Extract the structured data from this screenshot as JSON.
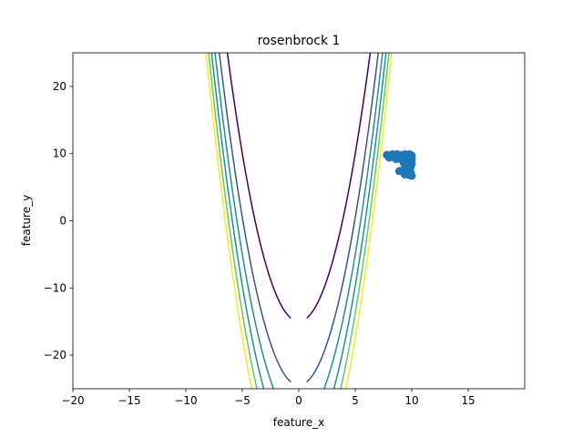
{
  "chart_data": {
    "type": "scatter",
    "title": "rosenbrock 1",
    "xlabel": "feature_x",
    "ylabel": "feature_y",
    "xlim": [
      -20,
      20
    ],
    "ylim": [
      -25,
      25
    ],
    "xticks": [
      -20,
      -15,
      -10,
      -5,
      0,
      5,
      10,
      15
    ],
    "yticks": [
      -20,
      -10,
      0,
      10,
      20
    ],
    "xtick_labels": [
      "−20",
      "−15",
      "−10",
      "−5",
      "0",
      "5",
      "10",
      "15"
    ],
    "ytick_labels": [
      "−20",
      "−10",
      "0",
      "10",
      "20"
    ],
    "grid": false,
    "contour_levels": [
      22500,
      60000,
      90000,
      120000,
      150000,
      180000
    ],
    "contour_colors": [
      "#440154",
      "#3b528b",
      "#21918c",
      "#21918c",
      "#5ec962",
      "#fde725"
    ],
    "marker_color": "#1f77b4",
    "points": [
      {
        "x": 7.8,
        "y": 9.8
      },
      {
        "x": 8.0,
        "y": 9.4
      },
      {
        "x": 8.3,
        "y": 9.9
      },
      {
        "x": 8.5,
        "y": 9.5
      },
      {
        "x": 8.7,
        "y": 9.9
      },
      {
        "x": 8.9,
        "y": 9.3
      },
      {
        "x": 9.0,
        "y": 9.8
      },
      {
        "x": 9.2,
        "y": 9.6
      },
      {
        "x": 9.4,
        "y": 9.9
      },
      {
        "x": 9.6,
        "y": 9.5
      },
      {
        "x": 9.8,
        "y": 9.9
      },
      {
        "x": 10.0,
        "y": 9.7
      },
      {
        "x": 9.1,
        "y": 9.1
      },
      {
        "x": 9.5,
        "y": 9.0
      },
      {
        "x": 9.9,
        "y": 9.2
      },
      {
        "x": 9.3,
        "y": 8.6
      },
      {
        "x": 9.7,
        "y": 8.8
      },
      {
        "x": 10.0,
        "y": 8.5
      },
      {
        "x": 9.6,
        "y": 8.2
      },
      {
        "x": 9.9,
        "y": 8.0
      },
      {
        "x": 9.5,
        "y": 7.8
      },
      {
        "x": 9.2,
        "y": 7.5
      },
      {
        "x": 8.9,
        "y": 7.4
      },
      {
        "x": 9.8,
        "y": 7.6
      },
      {
        "x": 9.6,
        "y": 7.1
      },
      {
        "x": 9.9,
        "y": 7.2
      },
      {
        "x": 9.4,
        "y": 6.9
      },
      {
        "x": 10.0,
        "y": 6.7
      },
      {
        "x": 9.8,
        "y": 6.8
      },
      {
        "x": 10.0,
        "y": 9.1
      },
      {
        "x": 9.7,
        "y": 9.8
      },
      {
        "x": 8.6,
        "y": 9.2
      }
    ]
  }
}
